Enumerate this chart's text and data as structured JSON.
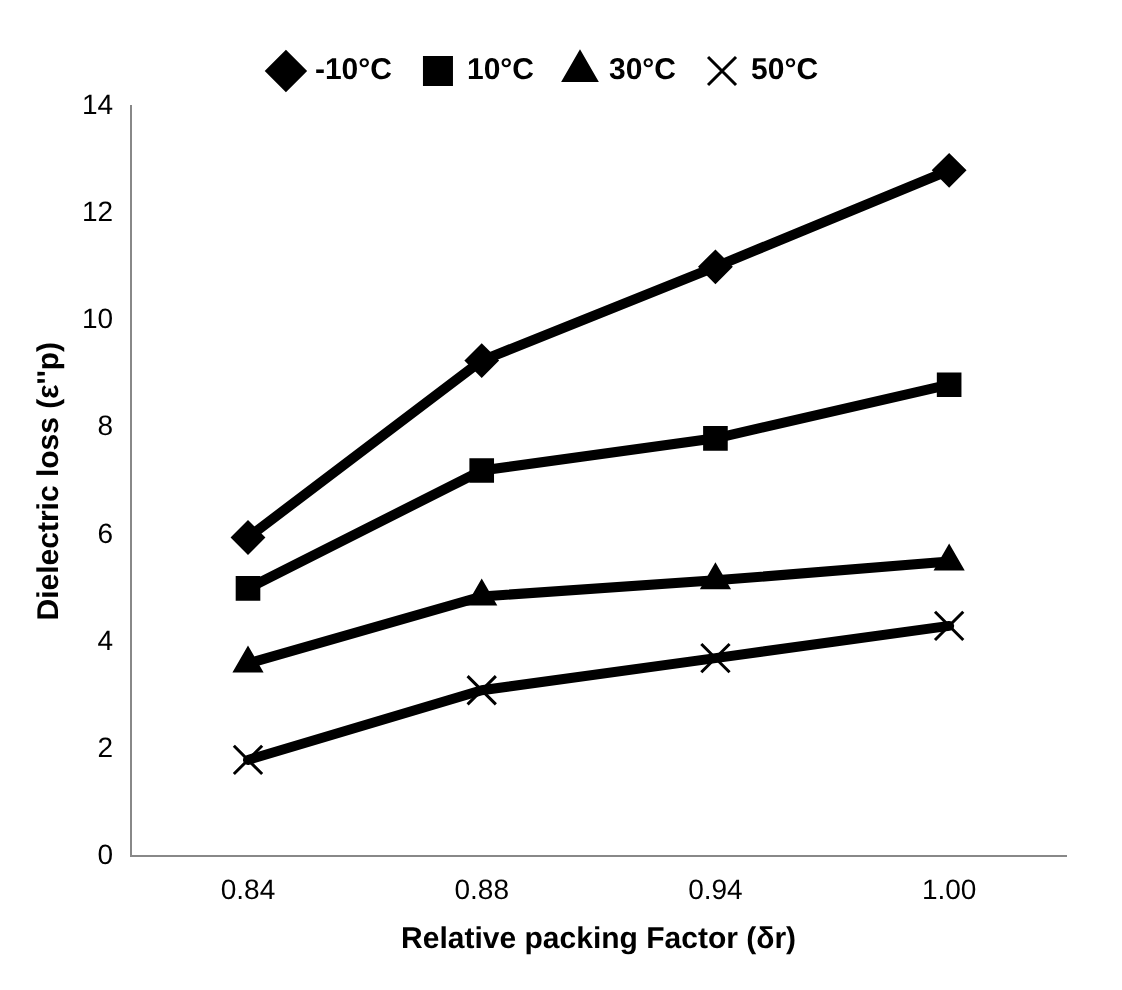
{
  "chart_data": {
    "type": "line",
    "xlabel": "Relative packing Factor (δr)",
    "ylabel": "Dielectric loss (ε''p)",
    "categories": [
      "0.84",
      "0.88",
      "0.94",
      "1.00"
    ],
    "ylim": [
      0,
      14
    ],
    "yticks": [
      0,
      2,
      4,
      6,
      8,
      10,
      12,
      14
    ],
    "grid": false,
    "legend": "top",
    "line_style": "solid",
    "series": [
      {
        "name": "-10°C",
        "color": "#000000",
        "marker": "diamond",
        "values": [
          5.95,
          9.25,
          11.0,
          12.8
        ]
      },
      {
        "name": "10°C",
        "color": "#000000",
        "marker": "square",
        "values": [
          5.0,
          7.2,
          7.8,
          8.8
        ]
      },
      {
        "name": "30°C",
        "color": "#000000",
        "marker": "triangle",
        "values": [
          3.6,
          4.85,
          5.15,
          5.5
        ]
      },
      {
        "name": "50°C",
        "color": "#000000",
        "marker": "cross",
        "values": [
          1.8,
          3.1,
          3.7,
          4.3
        ]
      }
    ]
  }
}
